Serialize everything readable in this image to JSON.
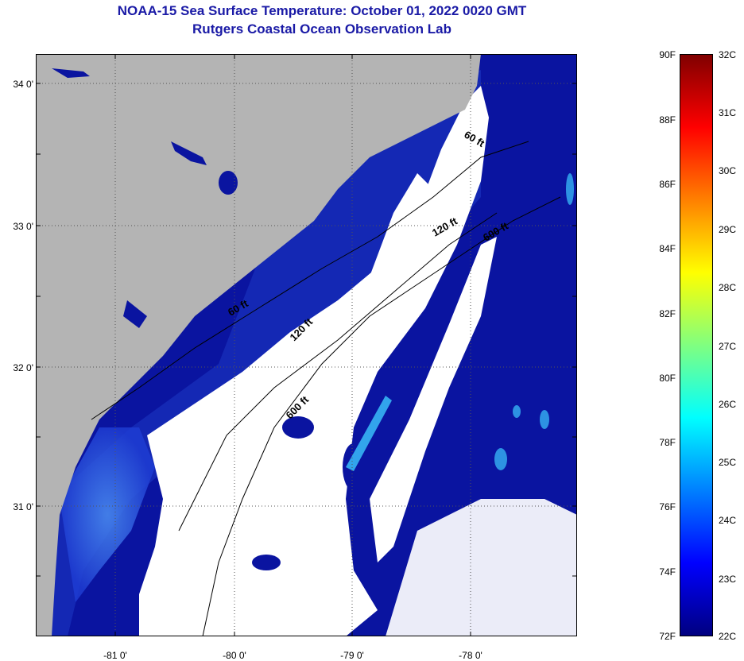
{
  "title_line1": "NOAA-15 Sea Surface Temperature:  October 01, 2022 0020 GMT",
  "title_line2": "Rutgers Coastal Ocean Observation Lab",
  "map": {
    "lat_labels": [
      "34 0'",
      "33 0'",
      "32 0'",
      "31 0'"
    ],
    "lon_labels": [
      "-81 0'",
      "-80 0'",
      "-79 0'",
      "-78 0'"
    ],
    "contours": [
      "60 ft",
      "120 ft",
      "600 ft",
      "60 ft",
      "120 ft",
      "600 ft"
    ],
    "colors": {
      "land": "#b4b4b4",
      "cloud": "#ffffff",
      "ocean_dark": "#0a14a0",
      "ocean_mid": "#1e3cd2",
      "nearshore": "#2d64e6",
      "warm_patch": "#3cc8ff"
    }
  },
  "colorbar": {
    "f_labels": [
      "90F",
      "88F",
      "86F",
      "84F",
      "82F",
      "80F",
      "78F",
      "76F",
      "74F",
      "72F"
    ],
    "c_labels": [
      "32C",
      "31C",
      "30C",
      "29C",
      "28C",
      "27C",
      "26C",
      "25C",
      "24C",
      "23C",
      "22C"
    ],
    "stops": [
      "#000080",
      "#0000ff",
      "#0080ff",
      "#00ffff",
      "#80ff80",
      "#ffff00",
      "#ff8000",
      "#ff0000",
      "#800000"
    ]
  }
}
